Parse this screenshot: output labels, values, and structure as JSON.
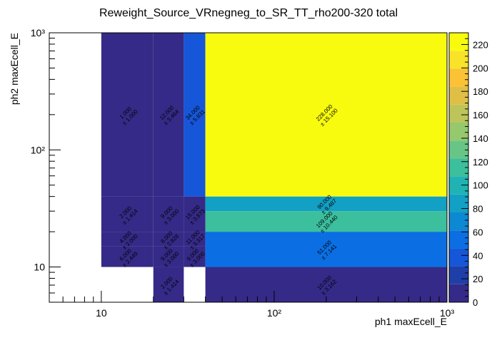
{
  "chart_data": {
    "type": "heatmap",
    "title": "Reweight_Source_VRnegneg_to_SR_TT_rho200-320 total",
    "xlabel": "ph1 maxEcell_E",
    "ylabel": "ph2 maxEcell_E",
    "xscale": "log",
    "yscale": "log",
    "xlim": [
      5,
      1000
    ],
    "ylim": [
      5,
      1000
    ],
    "x_tick_labels": [
      "10",
      "10²",
      "10³"
    ],
    "y_tick_labels": [
      "10",
      "10²",
      "10³"
    ],
    "zlim": [
      0,
      230
    ],
    "colorbar_ticks": [
      "0",
      "20",
      "40",
      "60",
      "80",
      "100",
      "120",
      "140",
      "160",
      "180",
      "200",
      "220"
    ],
    "cells": [
      {
        "x": [
          10,
          20
        ],
        "y": [
          10,
          15
        ],
        "value": "6.000",
        "error": "± 2.449"
      },
      {
        "x": [
          10,
          20
        ],
        "y": [
          15,
          20
        ],
        "value": "4.000",
        "error": "± 2.000"
      },
      {
        "x": [
          10,
          20
        ],
        "y": [
          20,
          40
        ],
        "value": "2.000",
        "error": "± 1.414"
      },
      {
        "x": [
          10,
          20
        ],
        "y": [
          40,
          1000
        ],
        "value": "1.000",
        "error": "± 1.000"
      },
      {
        "x": [
          20,
          30
        ],
        "y": [
          5,
          10
        ],
        "value": "2.000",
        "error": "± 1.414"
      },
      {
        "x": [
          20,
          30
        ],
        "y": [
          10,
          15
        ],
        "value": "9.000",
        "error": "± 3.000"
      },
      {
        "x": [
          20,
          30
        ],
        "y": [
          15,
          20
        ],
        "value": "8.000",
        "error": "± 2.828"
      },
      {
        "x": [
          20,
          30
        ],
        "y": [
          20,
          40
        ],
        "value": "9.000",
        "error": "± 3.000"
      },
      {
        "x": [
          20,
          30
        ],
        "y": [
          40,
          1000
        ],
        "value": "12.000",
        "error": "± 3.464"
      },
      {
        "x": [
          30,
          40
        ],
        "y": [
          10,
          15
        ],
        "value": "9.000",
        "error": "± 3.000"
      },
      {
        "x": [
          30,
          40
        ],
        "y": [
          15,
          20
        ],
        "value": "11.000",
        "error": "± 3.317"
      },
      {
        "x": [
          30,
          40
        ],
        "y": [
          20,
          40
        ],
        "value": "15.000",
        "error": "± 3.873"
      },
      {
        "x": [
          30,
          40
        ],
        "y": [
          40,
          1000
        ],
        "value": "34.000",
        "error": "± 5.831"
      },
      {
        "x": [
          40,
          1000
        ],
        "y": [
          5,
          10
        ],
        "value": "10.000",
        "error": "± 3.162"
      },
      {
        "x": [
          40,
          1000
        ],
        "y": [
          10,
          20
        ],
        "value": "51.000",
        "error": "± 7.141"
      },
      {
        "x": [
          40,
          1000
        ],
        "y": [
          20,
          30
        ],
        "value": "109.000",
        "error": "± 10.440"
      },
      {
        "x": [
          40,
          1000
        ],
        "y": [
          30,
          40
        ],
        "value": "90.000",
        "error": "± 9.487"
      },
      {
        "x": [
          40,
          1000
        ],
        "y": [
          40,
          1000
        ],
        "value": "228.000",
        "error": "± 15.100"
      }
    ]
  }
}
